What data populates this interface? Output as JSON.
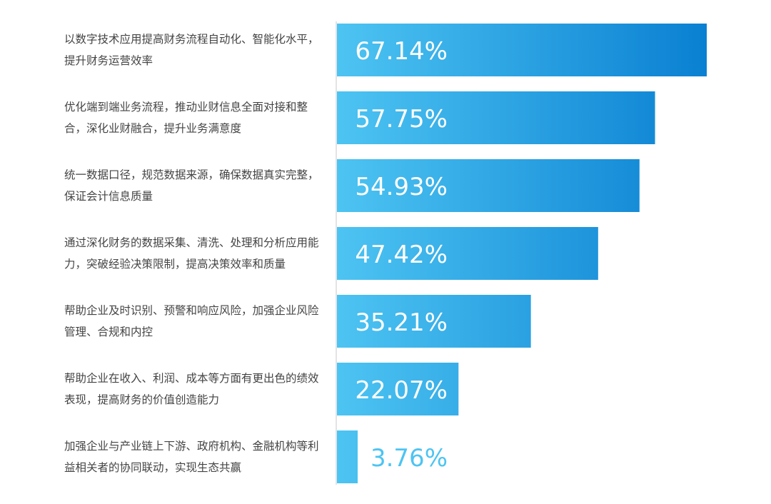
{
  "chart_data": {
    "type": "barh",
    "categories": [
      "以数字技术应用提高财务流程自动化、智能化水平，提升财务运营效率",
      "优化端到端业务流程，推动业财信息全面对接和整合，深化业财融合，提升业务满意度",
      "统一数据口径，规范数据来源，确保数据真实完整，保证会计信息质量",
      "通过深化财务的数据采集、清洗、处理和分析应用能力，突破经验决策限制，提高决策效率和质量",
      "帮助企业及时识别、预警和响应风险，加强企业风险管理、合规和内控",
      "帮助企业在收入、利润、成本等方面有更出色的绩效表现，提高财务的价值创造能力",
      "加强企业与产业链上下游、政府机构、金融机构等利益相关者的协同联动，实现生态共赢"
    ],
    "values": [
      67.14,
      57.75,
      54.93,
      47.42,
      35.21,
      22.07,
      3.76
    ],
    "value_labels": [
      "67.14%",
      "57.75%",
      "54.93%",
      "47.42%",
      "35.21%",
      "22.07%",
      "3.76%"
    ],
    "color": "#0a80d2"
  }
}
